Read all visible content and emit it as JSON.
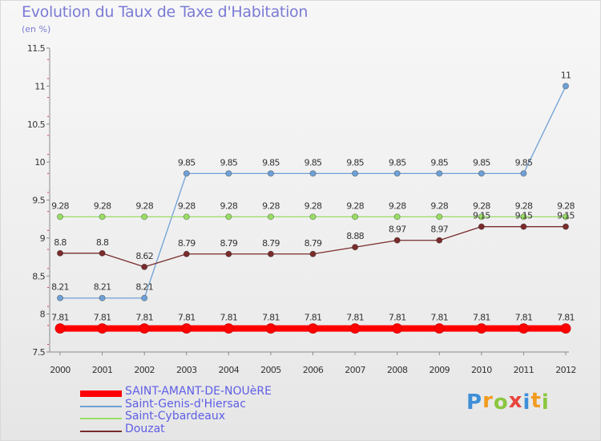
{
  "header": {
    "title": "Evolution du Taux de Taxe d'Habitation",
    "subtitle": "(en %)"
  },
  "chart_data": {
    "type": "line",
    "title": "Evolution du Taux de Taxe d'Habitation",
    "ylabel": "(en %)",
    "xlabel": "",
    "ylim": [
      7.5,
      11.5
    ],
    "yticks": [
      "7.5",
      "8",
      "8.5",
      "9",
      "9.5",
      "10",
      "10.5",
      "11",
      "11.5"
    ],
    "categories": [
      "2000",
      "2001",
      "2002",
      "2003",
      "2004",
      "2005",
      "2006",
      "2007",
      "2008",
      "2009",
      "2010",
      "2011",
      "2012"
    ],
    "series": [
      {
        "name": "SAINT-AMANT-DE-NOUèRE",
        "color": "#ff0000",
        "values": [
          7.81,
          7.81,
          7.81,
          7.81,
          7.81,
          7.81,
          7.81,
          7.81,
          7.81,
          7.81,
          7.81,
          7.81,
          7.81
        ],
        "labels": [
          "7.81",
          "7.81",
          "7.81",
          "7.81",
          "7.81",
          "7.81",
          "7.81",
          "7.81",
          "7.81",
          "7.81",
          "7.81",
          "7.81",
          "7.81"
        ]
      },
      {
        "name": "Saint-Genis-d'Hiersac",
        "color": "#6fa0d6",
        "values": [
          8.21,
          8.21,
          8.21,
          9.85,
          9.85,
          9.85,
          9.85,
          9.85,
          9.85,
          9.85,
          9.85,
          9.85,
          11
        ],
        "labels": [
          "8.21",
          "8.21",
          "8.21",
          "9.85",
          "9.85",
          "9.85",
          "9.85",
          "9.85",
          "9.85",
          "9.85",
          "9.85",
          "9.85",
          "11"
        ]
      },
      {
        "name": "Saint-Cybardeaux",
        "color": "#99dd66",
        "values": [
          9.28,
          9.28,
          9.28,
          9.28,
          9.28,
          9.28,
          9.28,
          9.28,
          9.28,
          9.28,
          9.28,
          9.28,
          9.28
        ],
        "labels": [
          "9.28",
          "9.28",
          "9.28",
          "9.28",
          "9.28",
          "9.28",
          "9.28",
          "9.28",
          "9.28",
          "9.28",
          "9.28",
          "9.28",
          "9.28"
        ]
      },
      {
        "name": "Douzat",
        "color": "#7a2c2c",
        "values": [
          8.8,
          8.8,
          8.62,
          8.79,
          8.79,
          8.79,
          8.79,
          8.88,
          8.97,
          8.97,
          9.15,
          9.15,
          9.15
        ],
        "labels": [
          "8.8",
          "8.8",
          "8.62",
          "8.79",
          "8.79",
          "8.79",
          "8.79",
          "8.88",
          "8.97",
          "8.97",
          "9.15",
          "9.15",
          "9.15"
        ]
      }
    ]
  },
  "legend": {
    "items": [
      {
        "label": "SAINT-AMANT-DE-NOUèRE",
        "color": "#ff0000",
        "thickness": "thick"
      },
      {
        "label": "Saint-Genis-d'Hiersac",
        "color": "#6fa0d6",
        "thickness": "thin"
      },
      {
        "label": "Saint-Cybardeaux",
        "color": "#99dd66",
        "thickness": "thin"
      },
      {
        "label": "Douzat",
        "color": "#7a2c2c",
        "thickness": "thin"
      }
    ]
  },
  "logo": {
    "letters": [
      "P",
      "r",
      "o",
      "x",
      "i",
      "t",
      "i"
    ],
    "colors": [
      "#3f8fd8",
      "#f29b1f",
      "#8cc63f",
      "#e8463c",
      "#3f8fd8",
      "#f29b1f",
      "#8cc63f"
    ]
  }
}
